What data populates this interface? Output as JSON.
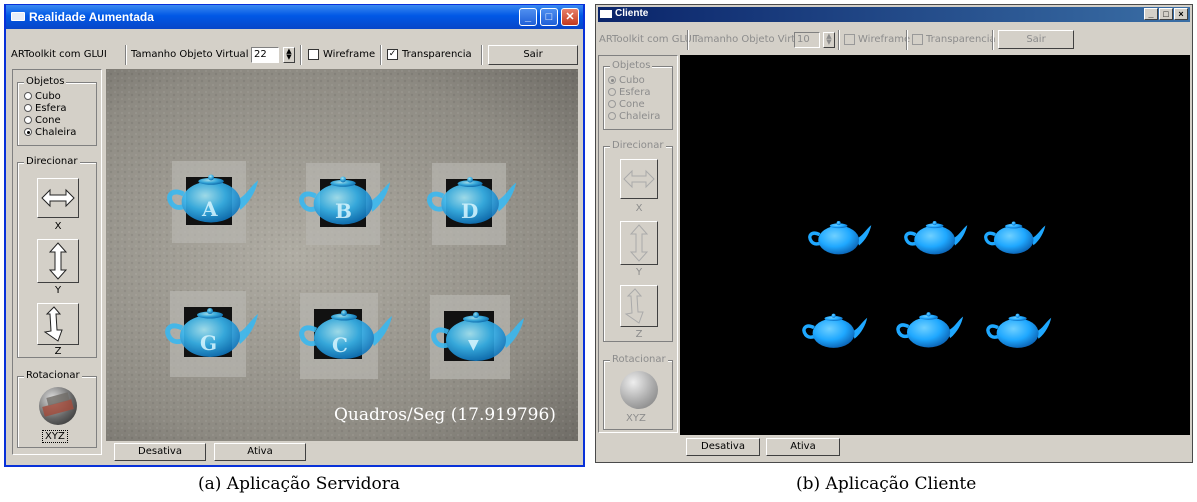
{
  "server": {
    "title": "Realidade Aumentada",
    "toolbar": {
      "mode_label": "ARToolkit com GLUI",
      "size_label": "Tamanho Objeto Virtual",
      "size_value": "22",
      "wireframe_label": "Wireframe",
      "wireframe_checked": false,
      "transparency_label": "Transparencia",
      "transparency_checked": true,
      "exit_label": "Sair"
    },
    "objects": {
      "label": "Objetos",
      "options": [
        "Cubo",
        "Esfera",
        "Cone",
        "Chaleira"
      ],
      "selected": "Chaleira"
    },
    "direction": {
      "label": "Direcionar",
      "axes": [
        "X",
        "Y",
        "Z"
      ]
    },
    "rotation": {
      "label": "Rotacionar",
      "axis_label": "XYZ"
    },
    "markers": [
      "A",
      "B",
      "D",
      "G",
      "C",
      "▼"
    ],
    "fps_text": "Quadros/Seg (17.919796)",
    "bottom_buttons": {
      "deactivate": "Desativa",
      "activate": "Ativa"
    },
    "colors": {
      "titlebar": "#0058e6",
      "teapot": "#3ab8f0"
    }
  },
  "client": {
    "title": "Cliente",
    "toolbar": {
      "mode_label": "ARToolkit com GLUI",
      "size_label": "Tamanho Objeto Virtual",
      "size_value": "10",
      "wireframe_label": "Wireframe",
      "transparency_label": "Transparencia",
      "exit_label": "Sair"
    },
    "objects": {
      "label": "Objetos",
      "options": [
        "Cubo",
        "Esfera",
        "Cone",
        "Chaleira"
      ],
      "selected": "Cubo"
    },
    "direction": {
      "label": "Direcionar",
      "axes": [
        "X",
        "Y",
        "Z"
      ]
    },
    "rotation": {
      "label": "Rotacionar",
      "axis_label": "XYZ"
    },
    "bottom_buttons": {
      "deactivate": "Desativa",
      "activate": "Ativa"
    },
    "colors": {
      "titlebar": "#0a246a",
      "teapot": "#1fa8ff"
    }
  },
  "captions": {
    "a": "(a) Aplicação Servidora",
    "b": "(b) Aplicação Cliente"
  }
}
